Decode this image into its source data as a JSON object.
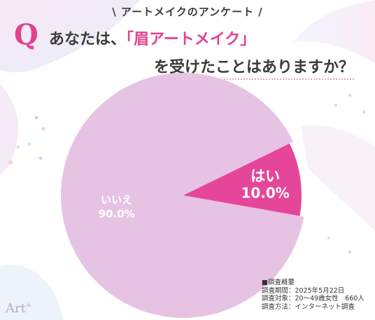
{
  "header": {
    "title": "\\ アートメイクのアンケート /"
  },
  "question": {
    "mark": "Q",
    "line1_prefix": "あなたは、",
    "line1_highlight": "「眉アートメイク」",
    "line2": "を受けたことはありますか？"
  },
  "chart_data": {
    "type": "pie",
    "slices": [
      {
        "label": "いいえ",
        "value": 90.0,
        "display": "90.0%",
        "color": "#e7c3e3"
      },
      {
        "label": "はい",
        "value": 10.0,
        "display": "10.0%",
        "color": "#e6469a"
      }
    ]
  },
  "survey": {
    "heading": "■調査概要",
    "period": "調査期間：2025年5月22日",
    "target": "調査対象：20〜49歳女性　660人",
    "method": "調査方法：インターネット調査"
  },
  "logo": {
    "text": "Art",
    "sup": "+"
  },
  "colors": {
    "accent": "#e2418f",
    "text": "#3a3a3a"
  }
}
